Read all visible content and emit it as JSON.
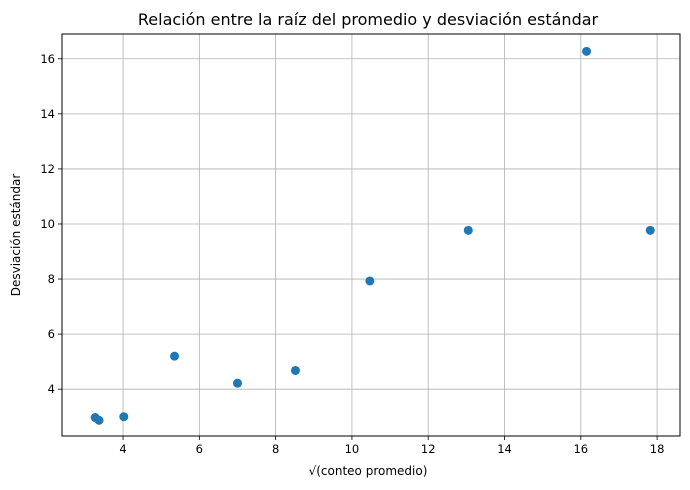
{
  "chart_data": {
    "type": "scatter",
    "title": "Relación entre la raíz del promedio y desviación estándar",
    "xlabel": "√(conteo promedio)",
    "ylabel": "Desviación estándar",
    "xlim": [
      2.4,
      18.6
    ],
    "ylim": [
      2.3,
      16.9
    ],
    "xticks": [
      4,
      6,
      8,
      10,
      12,
      14,
      16,
      18
    ],
    "yticks": [
      4,
      6,
      8,
      10,
      12,
      14,
      16
    ],
    "grid": true,
    "point_color": "#1f77b4",
    "points": [
      {
        "x": 3.27,
        "y": 2.97
      },
      {
        "x": 3.37,
        "y": 2.87
      },
      {
        "x": 4.02,
        "y": 3.0
      },
      {
        "x": 5.35,
        "y": 5.2
      },
      {
        "x": 7.0,
        "y": 4.22
      },
      {
        "x": 8.52,
        "y": 4.68
      },
      {
        "x": 10.47,
        "y": 7.93
      },
      {
        "x": 13.05,
        "y": 9.77
      },
      {
        "x": 16.15,
        "y": 16.27
      },
      {
        "x": 17.82,
        "y": 9.77
      }
    ]
  }
}
